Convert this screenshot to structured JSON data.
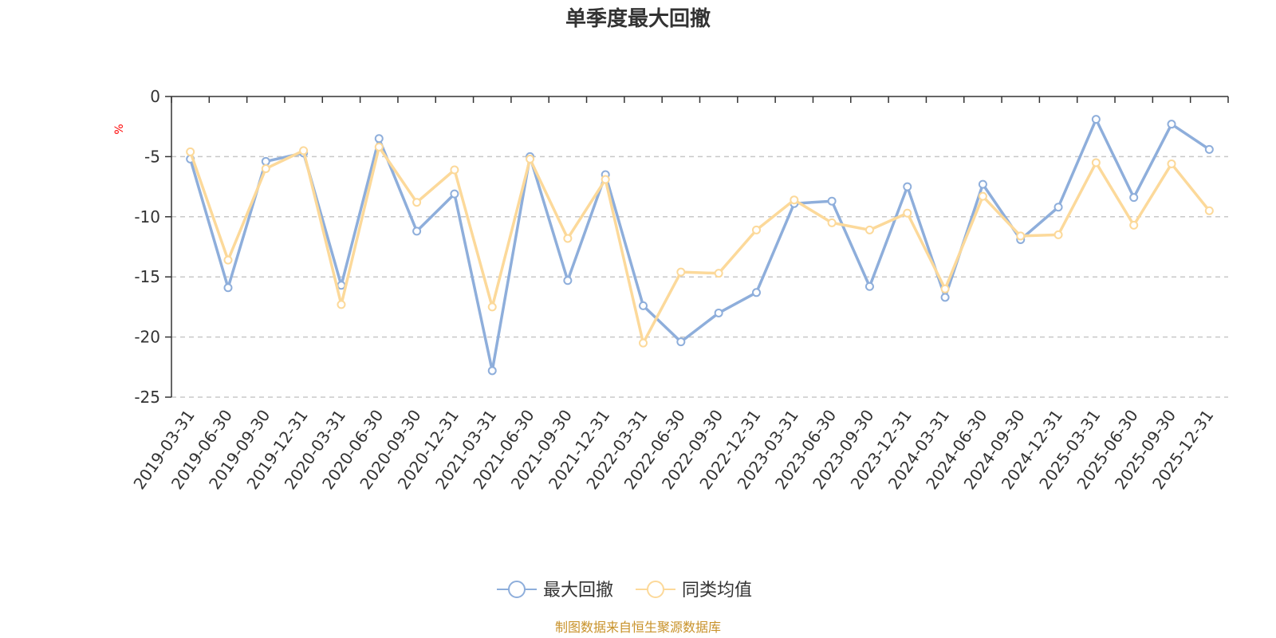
{
  "chart_data": {
    "type": "line",
    "title": "单季度最大回撤",
    "ylabel": "%",
    "xlabel": "",
    "ylim": [
      -25,
      0
    ],
    "yticks": [
      0,
      -5,
      -10,
      -15,
      -20,
      -25
    ],
    "ytick_labels": [
      "0",
      "-5",
      "-10",
      "-15",
      "-20",
      "-25"
    ],
    "grid": true,
    "legend_position": "bottom-center",
    "categories": [
      "2019-03-31",
      "2019-06-30",
      "2019-09-30",
      "2019-12-31",
      "2020-03-31",
      "2020-06-30",
      "2020-09-30",
      "2020-12-31",
      "2021-03-31",
      "2021-06-30",
      "2021-09-30",
      "2021-12-31",
      "2022-03-31",
      "2022-06-30",
      "2022-09-30",
      "2022-12-31",
      "2023-03-31",
      "2023-06-30",
      "2023-09-30",
      "2023-12-31",
      "2024-03-31",
      "2024-06-30",
      "2024-09-30",
      "2024-12-31",
      "2025-03-31",
      "2025-06-30",
      "2025-09-30",
      "2025-12-31"
    ],
    "series": [
      {
        "name": "最大回撤",
        "color": "#8eaedb",
        "values": [
          -5.2,
          -15.9,
          -5.4,
          -4.7,
          -15.7,
          -3.5,
          -11.2,
          -8.1,
          -22.8,
          -5.0,
          -15.3,
          -6.5,
          -17.4,
          -20.4,
          -18.0,
          -16.3,
          -8.9,
          -8.7,
          -15.8,
          -7.5,
          -16.7,
          -7.3,
          -11.9,
          -9.2,
          -1.9,
          -8.4,
          -2.3,
          -4.4
        ]
      },
      {
        "name": "同类均值",
        "color": "#fcd99a",
        "values": [
          -4.6,
          -13.6,
          -6.0,
          -4.5,
          -17.3,
          -4.2,
          -8.8,
          -6.1,
          -17.5,
          -5.2,
          -11.8,
          -6.9,
          -20.5,
          -14.6,
          -14.7,
          -11.1,
          -8.6,
          -10.5,
          -11.1,
          -9.7,
          -16.0,
          -8.3,
          -11.6,
          -11.5,
          -5.5,
          -10.7,
          -5.6,
          -9.5
        ]
      }
    ]
  },
  "source_note": "制图数据来自恒生聚源数据库"
}
